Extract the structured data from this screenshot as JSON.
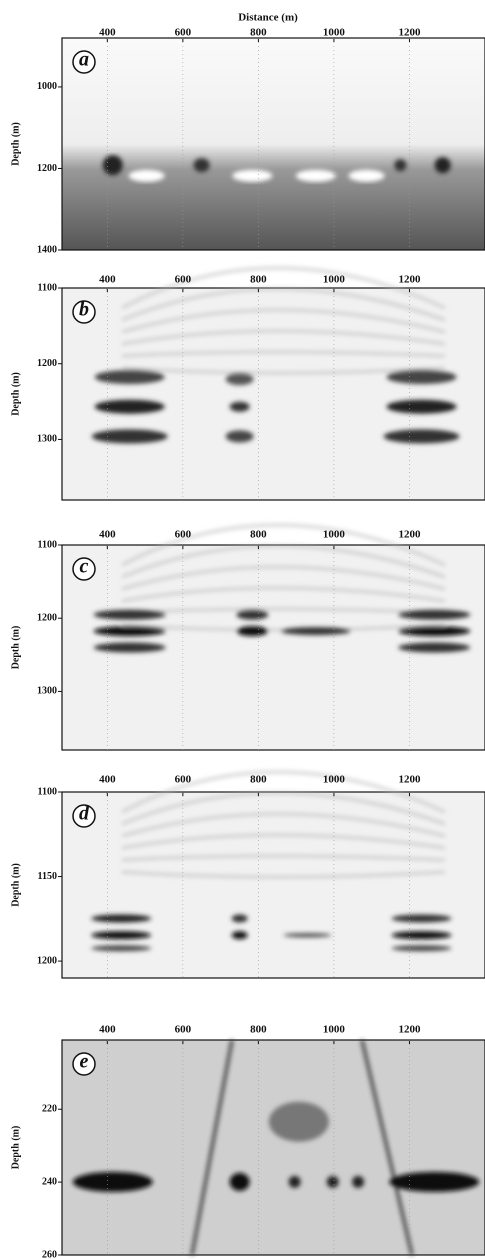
{
  "x_axis": {
    "label": "Distance (m)"
  },
  "panels": [
    {
      "label": "a",
      "ylabel": "Depth (m)",
      "xlim": [
        280,
        1400
      ],
      "xticks": [
        400,
        600,
        800,
        1000,
        1200
      ],
      "ylim": [
        880,
        1400
      ],
      "yticks": [
        1000,
        1200,
        1400
      ]
    },
    {
      "label": "b",
      "ylabel": "Depth (m)",
      "xlim": [
        280,
        1400
      ],
      "xticks": [
        400,
        600,
        800,
        1000,
        1200
      ],
      "ylim": [
        1100,
        1380
      ],
      "yticks": [
        1100,
        1200,
        1300
      ]
    },
    {
      "label": "c",
      "ylabel": "Depth (m)",
      "xlim": [
        280,
        1400
      ],
      "xticks": [
        400,
        600,
        800,
        1000,
        1200
      ],
      "ylim": [
        1100,
        1380
      ],
      "yticks": [
        1100,
        1200,
        1300
      ]
    },
    {
      "label": "d",
      "ylabel": "Depth (m)",
      "xlim": [
        280,
        1400
      ],
      "xticks": [
        400,
        600,
        800,
        1000,
        1200
      ],
      "ylim": [
        1100,
        1210
      ],
      "yticks": [
        1100,
        1150,
        1200
      ]
    },
    {
      "label": "e",
      "ylabel": "Depth (m)",
      "xlim": [
        280,
        1400
      ],
      "xticks": [
        400,
        600,
        800,
        1000,
        1200
      ],
      "ylim": [
        201,
        260
      ],
      "yticks": [
        220,
        240,
        260
      ]
    }
  ]
}
